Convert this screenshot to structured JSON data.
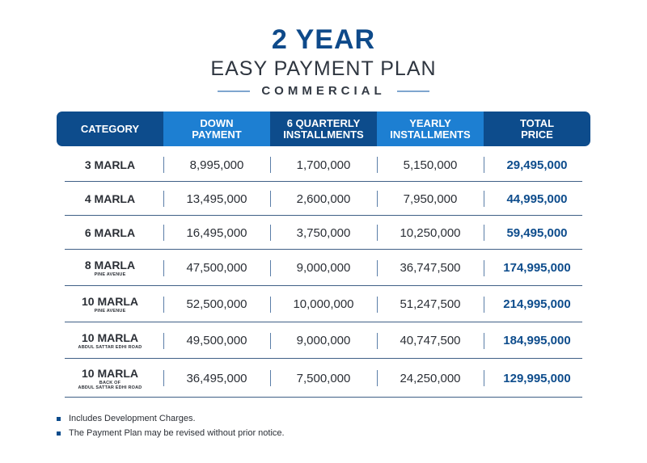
{
  "header": {
    "title": "2 YEAR",
    "subtitle": "EASY PAYMENT PLAN",
    "category": "COMMERCIAL"
  },
  "table": {
    "columns": [
      "CATEGORY",
      "DOWN\nPAYMENT",
      "6 QUARTERLY\nINSTALLMENTS",
      "YEARLY\nINSTALLMENTS",
      "TOTAL\nPRICE"
    ],
    "rows": [
      {
        "category": "3 MARLA",
        "note": "",
        "down": "8,995,000",
        "quarterly": "1,700,000",
        "yearly": "5,150,000",
        "total": "29,495,000"
      },
      {
        "category": "4 MARLA",
        "note": "",
        "down": "13,495,000",
        "quarterly": "2,600,000",
        "yearly": "7,950,000",
        "total": "44,995,000"
      },
      {
        "category": "6 MARLA",
        "note": "",
        "down": "16,495,000",
        "quarterly": "3,750,000",
        "yearly": "10,250,000",
        "total": "59,495,000"
      },
      {
        "category": "8 MARLA",
        "note": "PINE AVENUE",
        "down": "47,500,000",
        "quarterly": "9,000,000",
        "yearly": "36,747,500",
        "total": "174,995,000"
      },
      {
        "category": "10 MARLA",
        "note": "PINE AVENUE",
        "down": "52,500,000",
        "quarterly": "10,000,000",
        "yearly": "51,247,500",
        "total": "214,995,000"
      },
      {
        "category": "10 MARLA",
        "note": "ABDUL SATTAR EDHI ROAD",
        "down": "49,500,000",
        "quarterly": "9,000,000",
        "yearly": "40,747,500",
        "total": "184,995,000"
      },
      {
        "category": "10 MARLA",
        "note": "BACK OF\nABDUL SATTAR EDHI ROAD",
        "down": "36,495,000",
        "quarterly": "7,500,000",
        "yearly": "24,250,000",
        "total": "129,995,000"
      }
    ]
  },
  "notes": [
    "Includes Development Charges.",
    "The Payment Plan may be revised without prior notice."
  ],
  "colors": {
    "header_dark": "#0d4c8c",
    "header_light": "#1d7fd2",
    "total_text": "#0d4c8c"
  }
}
